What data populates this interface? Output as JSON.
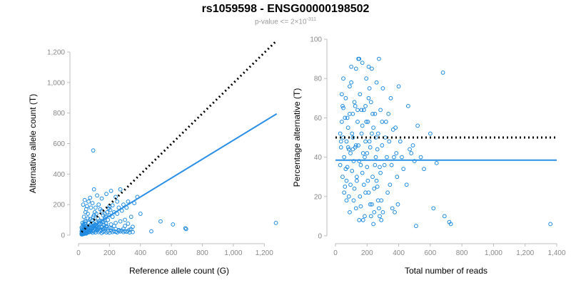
{
  "header": {
    "title": "rs1059598 - ENSG00000198502",
    "subtitle_prefix": "p-value <= 2×10",
    "subtitle_exp": "-311"
  },
  "colors": {
    "points": "#1f8be0",
    "fit": "#2b8fe8",
    "reference": "#000000",
    "axis": "#bdbdbd",
    "ticks": "#888888"
  },
  "chart_data": [
    {
      "type": "scatter",
      "xlabel": "Reference allele count (G)",
      "ylabel": "Alternative allele count (T)",
      "xlim": [
        0,
        1300
      ],
      "ylim": [
        0,
        1200
      ],
      "xticks": [
        0,
        200,
        400,
        600,
        800,
        1000,
        1200
      ],
      "xtick_labels": [
        "0",
        "200",
        "400",
        "600",
        "800",
        "1,000",
        "1,200"
      ],
      "yticks": [
        0,
        200,
        400,
        600,
        800,
        1000,
        1200
      ],
      "ytick_labels": [
        "0",
        "200",
        "400",
        "600",
        "800",
        "1,000",
        "1,200"
      ],
      "reference_line": {
        "style": "dotted",
        "x": [
          20,
          1280
        ],
        "y": [
          20,
          1275
        ]
      },
      "fit_line": {
        "style": "solid",
        "x": [
          20,
          1280
        ],
        "y": [
          15,
          795
        ]
      },
      "points": [
        [
          20,
          5
        ],
        [
          25,
          12
        ],
        [
          30,
          8
        ],
        [
          35,
          20
        ],
        [
          40,
          15
        ],
        [
          45,
          30
        ],
        [
          50,
          10
        ],
        [
          55,
          25
        ],
        [
          60,
          40
        ],
        [
          65,
          18
        ],
        [
          70,
          35
        ],
        [
          75,
          50
        ],
        [
          80,
          22
        ],
        [
          85,
          45
        ],
        [
          90,
          60
        ],
        [
          95,
          28
        ],
        [
          100,
          55
        ],
        [
          105,
          70
        ],
        [
          110,
          38
        ],
        [
          115,
          65
        ],
        [
          120,
          80
        ],
        [
          125,
          42
        ],
        [
          130,
          75
        ],
        [
          140,
          95
        ],
        [
          150,
          50
        ],
        [
          160,
          85
        ],
        [
          170,
          110
        ],
        [
          180,
          60
        ],
        [
          190,
          100
        ],
        [
          200,
          130
        ],
        [
          210,
          70
        ],
        [
          220,
          120
        ],
        [
          230,
          150
        ],
        [
          240,
          80
        ],
        [
          250,
          140
        ],
        [
          260,
          180
        ],
        [
          270,
          90
        ],
        [
          280,
          160
        ],
        [
          290,
          200
        ],
        [
          300,
          100
        ],
        [
          310,
          180
        ],
        [
          320,
          220
        ],
        [
          340,
          120
        ],
        [
          360,
          210
        ],
        [
          380,
          250
        ],
        [
          400,
          140
        ],
        [
          250,
          220
        ],
        [
          200,
          190
        ],
        [
          150,
          160
        ],
        [
          100,
          130
        ],
        [
          60,
          110
        ],
        [
          40,
          90
        ],
        [
          30,
          70
        ],
        [
          20,
          50
        ],
        [
          25,
          80
        ],
        [
          35,
          120
        ],
        [
          45,
          150
        ],
        [
          55,
          190
        ],
        [
          65,
          220
        ],
        [
          75,
          245
        ],
        [
          30,
          200
        ],
        [
          40,
          230
        ],
        [
          50,
          170
        ],
        [
          60,
          140
        ],
        [
          80,
          180
        ],
        [
          90,
          210
        ],
        [
          110,
          180
        ],
        [
          130,
          200
        ],
        [
          150,
          240
        ],
        [
          180,
          270
        ],
        [
          210,
          290
        ],
        [
          240,
          250
        ],
        [
          270,
          300
        ],
        [
          100,
          300
        ],
        [
          120,
          260
        ],
        [
          95,
          555
        ],
        [
          20,
          25
        ],
        [
          22,
          40
        ],
        [
          28,
          55
        ],
        [
          32,
          65
        ],
        [
          38,
          45
        ],
        [
          42,
          75
        ],
        [
          48,
          90
        ],
        [
          52,
          35
        ],
        [
          58,
          28
        ],
        [
          62,
          48
        ],
        [
          68,
          58
        ],
        [
          72,
          32
        ],
        [
          78,
          68
        ],
        [
          82,
          42
        ],
        [
          88,
          52
        ],
        [
          92,
          78
        ],
        [
          98,
          36
        ],
        [
          102,
          62
        ],
        [
          108,
          44
        ],
        [
          112,
          88
        ],
        [
          118,
          54
        ],
        [
          122,
          34
        ],
        [
          128,
          66
        ],
        [
          132,
          46
        ],
        [
          138,
          72
        ],
        [
          142,
          38
        ],
        [
          148,
          92
        ],
        [
          152,
          56
        ],
        [
          158,
          40
        ],
        [
          162,
          68
        ],
        [
          168,
          98
        ],
        [
          172,
          44
        ],
        [
          178,
          76
        ],
        [
          182,
          52
        ],
        [
          20,
          10
        ],
        [
          25,
          5
        ],
        [
          30,
          15
        ],
        [
          35,
          8
        ],
        [
          40,
          20
        ],
        [
          45,
          12
        ],
        [
          50,
          25
        ],
        [
          55,
          18
        ],
        [
          60,
          30
        ],
        [
          70,
          22
        ],
        [
          80,
          28
        ],
        [
          90,
          16
        ],
        [
          100,
          24
        ],
        [
          110,
          18
        ],
        [
          120,
          30
        ],
        [
          130,
          20
        ],
        [
          140,
          26
        ],
        [
          150,
          14
        ],
        [
          160,
          22
        ],
        [
          170,
          28
        ],
        [
          180,
          18
        ],
        [
          190,
          24
        ],
        [
          200,
          16
        ],
        [
          210,
          30
        ],
        [
          220,
          20
        ],
        [
          230,
          26
        ],
        [
          240,
          22
        ],
        [
          250,
          18
        ],
        [
          260,
          28
        ],
        [
          270,
          24
        ],
        [
          280,
          30
        ],
        [
          290,
          20
        ],
        [
          300,
          26
        ],
        [
          310,
          22
        ],
        [
          320,
          28
        ],
        [
          330,
          18
        ],
        [
          340,
          38
        ],
        [
          350,
          20
        ],
        [
          240,
          40
        ],
        [
          260,
          34
        ],
        [
          290,
          42
        ],
        [
          330,
          36
        ],
        [
          470,
          25
        ],
        [
          530,
          90
        ],
        [
          610,
          70
        ],
        [
          690,
          45
        ],
        [
          695,
          40
        ],
        [
          1275,
          80
        ],
        [
          300,
          60
        ],
        [
          320,
          75
        ],
        [
          350,
          55
        ],
        [
          200,
          50
        ],
        [
          210,
          45
        ],
        [
          230,
          60
        ],
        [
          170,
          140
        ],
        [
          175,
          120
        ],
        [
          185,
          150
        ],
        [
          195,
          175
        ],
        [
          205,
          165
        ],
        [
          220,
          195
        ],
        [
          140,
          170
        ],
        [
          160,
          130
        ],
        [
          125,
          110
        ],
        [
          115,
          140
        ],
        [
          105,
          150
        ],
        [
          95,
          120
        ],
        [
          85,
          95
        ],
        [
          75,
          105
        ],
        [
          65,
          80
        ],
        [
          55,
          62
        ],
        [
          45,
          48
        ],
        [
          35,
          38
        ],
        [
          28,
          30
        ],
        [
          24,
          20
        ],
        [
          22,
          16
        ],
        [
          26,
          34
        ],
        [
          33,
          26
        ],
        [
          38,
          52
        ],
        [
          44,
          58
        ],
        [
          49,
          44
        ]
      ]
    },
    {
      "type": "scatter",
      "xlabel": "Total number of reads",
      "ylabel": "Percentage alternative (T)",
      "xlim": [
        0,
        1400
      ],
      "ylim": [
        0,
        100
      ],
      "xticks": [
        0,
        200,
        400,
        600,
        800,
        1000,
        1200,
        1400
      ],
      "xtick_labels": [
        "0",
        "200",
        "400",
        "600",
        "800",
        "1,000",
        "1,200",
        "1,400"
      ],
      "yticks": [
        0,
        20,
        40,
        60,
        80,
        100
      ],
      "ytick_labels": [
        "0",
        "20",
        "40",
        "60",
        "80",
        "100"
      ],
      "reference_line": {
        "style": "dotted",
        "x": [
          0,
          1400
        ],
        "y": [
          50,
          50
        ]
      },
      "fit_line": {
        "style": "solid",
        "x": [
          0,
          1400
        ],
        "y": [
          38.5,
          38.5
        ]
      },
      "points": [
        [
          30,
          52
        ],
        [
          35,
          45
        ],
        [
          40,
          58
        ],
        [
          45,
          30
        ],
        [
          50,
          65
        ],
        [
          55,
          40
        ],
        [
          60,
          25
        ],
        [
          65,
          70
        ],
        [
          70,
          48
        ],
        [
          75,
          35
        ],
        [
          80,
          55
        ],
        [
          85,
          20
        ],
        [
          90,
          62
        ],
        [
          95,
          42
        ],
        [
          100,
          78
        ],
        [
          105,
          33
        ],
        [
          110,
          50
        ],
        [
          115,
          18
        ],
        [
          120,
          68
        ],
        [
          125,
          45
        ],
        [
          130,
          85
        ],
        [
          135,
          28
        ],
        [
          140,
          58
        ],
        [
          145,
          90
        ],
        [
          150,
          38
        ],
        [
          155,
          72
        ],
        [
          160,
          15
        ],
        [
          165,
          52
        ],
        [
          170,
          88
        ],
        [
          175,
          42
        ],
        [
          180,
          64
        ],
        [
          185,
          10
        ],
        [
          190,
          48
        ],
        [
          195,
          80
        ],
        [
          200,
          35
        ],
        [
          205,
          58
        ],
        [
          210,
          22
        ],
        [
          215,
          75
        ],
        [
          220,
          45
        ],
        [
          225,
          68
        ],
        [
          230,
          85
        ],
        [
          235,
          30
        ],
        [
          240,
          55
        ],
        [
          245,
          12
        ],
        [
          250,
          62
        ],
        [
          255,
          40
        ],
        [
          260,
          78
        ],
        [
          265,
          25
        ],
        [
          270,
          52
        ],
        [
          275,
          90
        ],
        [
          280,
          35
        ],
        [
          285,
          64
        ],
        [
          290,
          18
        ],
        [
          295,
          46
        ],
        [
          300,
          75
        ],
        [
          310,
          36
        ],
        [
          320,
          58
        ],
        [
          330,
          22
        ],
        [
          340,
          48
        ],
        [
          350,
          70
        ],
        [
          360,
          14
        ],
        [
          370,
          40
        ],
        [
          380,
          55
        ],
        [
          390,
          30
        ],
        [
          400,
          76
        ],
        [
          420,
          40
        ],
        [
          450,
          26
        ],
        [
          470,
          44
        ],
        [
          480,
          42
        ],
        [
          500,
          38
        ],
        [
          510,
          5
        ],
        [
          520,
          56
        ],
        [
          560,
          34
        ],
        [
          600,
          52
        ],
        [
          620,
          14
        ],
        [
          640,
          37
        ],
        [
          680,
          83
        ],
        [
          690,
          10
        ],
        [
          720,
          7
        ],
        [
          730,
          6
        ],
        [
          1360,
          6
        ],
        [
          40,
          72
        ],
        [
          50,
          80
        ],
        [
          60,
          60
        ],
        [
          70,
          28
        ],
        [
          80,
          45
        ],
        [
          90,
          12
        ],
        [
          100,
          86
        ],
        [
          110,
          62
        ],
        [
          120,
          24
        ],
        [
          130,
          46
        ],
        [
          140,
          64
        ],
        [
          150,
          8
        ],
        [
          160,
          36
        ],
        [
          170,
          56
        ],
        [
          180,
          26
        ],
        [
          190,
          66
        ],
        [
          200,
          42
        ],
        [
          210,
          86
        ],
        [
          220,
          16
        ],
        [
          230,
          52
        ],
        [
          240,
          6
        ],
        [
          250,
          36
        ],
        [
          260,
          28
        ],
        [
          270,
          18
        ],
        [
          280,
          10
        ],
        [
          290,
          8
        ],
        [
          300,
          12
        ],
        [
          30,
          36
        ],
        [
          35,
          48
        ],
        [
          45,
          66
        ],
        [
          55,
          22
        ],
        [
          65,
          34
        ],
        [
          75,
          60
        ],
        [
          85,
          44
        ],
        [
          95,
          26
        ],
        [
          105,
          52
        ],
        [
          115,
          38
        ],
        [
          125,
          66
        ],
        [
          135,
          30
        ],
        [
          145,
          46
        ],
        [
          155,
          20
        ],
        [
          165,
          64
        ],
        [
          175,
          8
        ],
        [
          185,
          40
        ],
        [
          195,
          58
        ],
        [
          205,
          28
        ],
        [
          215,
          48
        ],
        [
          225,
          10
        ],
        [
          235,
          62
        ],
        [
          245,
          24
        ],
        [
          255,
          50
        ],
        [
          265,
          44
        ],
        [
          275,
          14
        ],
        [
          285,
          32
        ],
        [
          295,
          58
        ],
        [
          315,
          50
        ],
        [
          325,
          40
        ],
        [
          335,
          62
        ],
        [
          345,
          26
        ],
        [
          355,
          36
        ],
        [
          365,
          54
        ],
        [
          375,
          12
        ],
        [
          385,
          42
        ],
        [
          395,
          16
        ],
        [
          410,
          48
        ],
        [
          430,
          34
        ],
        [
          460,
          66
        ],
        [
          490,
          46
        ],
        [
          540,
          40
        ],
        [
          50,
          50
        ],
        [
          70,
          18
        ],
        [
          90,
          76
        ],
        [
          110,
          44
        ],
        [
          130,
          14
        ],
        [
          150,
          90
        ],
        [
          170,
          32
        ],
        [
          190,
          22
        ],
        [
          210,
          70
        ],
        [
          230,
          16
        ]
      ]
    }
  ]
}
